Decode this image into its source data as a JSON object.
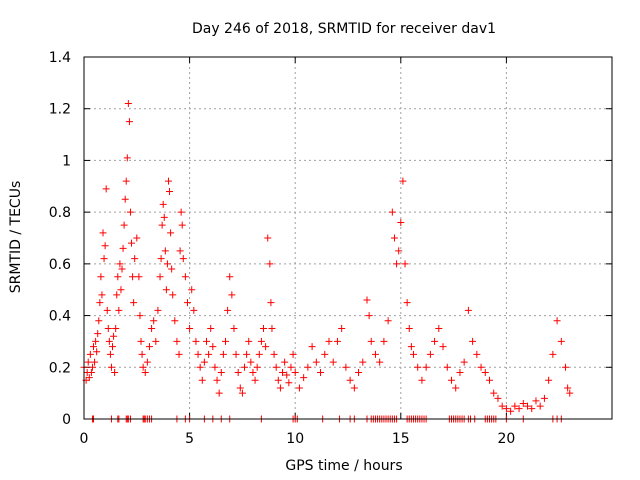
{
  "chart_data": {
    "type": "scatter",
    "title": "Day 246 of 2018, SRMTID for receiver dav1",
    "xlabel": "GPS time / hours",
    "ylabel": "SRMTID / TECUs",
    "xlim": [
      0,
      25
    ],
    "ylim": [
      0,
      1.4
    ],
    "grid": true,
    "x_ticks": [
      0,
      5,
      10,
      15,
      20
    ],
    "y_ticks": [
      0,
      0.2,
      0.4,
      0.6,
      0.8,
      1,
      1.2,
      1.4
    ],
    "x_tick_labels": [
      "0",
      "5",
      "10",
      "15",
      "20"
    ],
    "y_tick_labels": [
      "0",
      "0.2",
      "0.4",
      "0.6",
      "0.8",
      "1",
      "1.2",
      "1.4"
    ],
    "marker": "+",
    "marker_color": "#ff0000",
    "grid_color": "#a0a0a0",
    "series": [
      {
        "name": "dav1",
        "points": [
          [
            0.0,
            0.2
          ],
          [
            0.1,
            0.15
          ],
          [
            0.15,
            0.18
          ],
          [
            0.2,
            0.22
          ],
          [
            0.25,
            0.16
          ],
          [
            0.3,
            0.25
          ],
          [
            0.35,
            0.18
          ],
          [
            0.4,
            0.2
          ],
          [
            0.45,
            0.28
          ],
          [
            0.5,
            0.22
          ],
          [
            0.55,
            0.3
          ],
          [
            0.6,
            0.26
          ],
          [
            0.65,
            0.33
          ],
          [
            0.7,
            0.38
          ],
          [
            0.75,
            0.45
          ],
          [
            0.8,
            0.55
          ],
          [
            0.85,
            0.48
          ],
          [
            0.9,
            0.72
          ],
          [
            0.95,
            0.62
          ],
          [
            1.0,
            0.67
          ],
          [
            1.05,
            0.89
          ],
          [
            1.1,
            0.42
          ],
          [
            1.15,
            0.35
          ],
          [
            1.2,
            0.3
          ],
          [
            1.25,
            0.25
          ],
          [
            1.3,
            0.2
          ],
          [
            1.35,
            0.28
          ],
          [
            1.4,
            0.32
          ],
          [
            1.45,
            0.18
          ],
          [
            1.5,
            0.35
          ],
          [
            1.55,
            0.48
          ],
          [
            1.6,
            0.55
          ],
          [
            1.65,
            0.42
          ],
          [
            1.7,
            0.6
          ],
          [
            1.75,
            0.5
          ],
          [
            1.8,
            0.58
          ],
          [
            1.85,
            0.66
          ],
          [
            1.9,
            0.75
          ],
          [
            1.95,
            0.85
          ],
          [
            2.0,
            0.92
          ],
          [
            2.05,
            1.01
          ],
          [
            2.1,
            1.22
          ],
          [
            2.15,
            1.15
          ],
          [
            2.2,
            0.8
          ],
          [
            2.25,
            0.68
          ],
          [
            2.3,
            0.55
          ],
          [
            2.35,
            0.45
          ],
          [
            2.4,
            0.62
          ],
          [
            2.5,
            0.7
          ],
          [
            2.6,
            0.55
          ],
          [
            2.65,
            0.4
          ],
          [
            2.7,
            0.3
          ],
          [
            2.75,
            0.25
          ],
          [
            2.8,
            0.2
          ],
          [
            2.9,
            0.18
          ],
          [
            3.0,
            0.22
          ],
          [
            3.1,
            0.28
          ],
          [
            3.2,
            0.35
          ],
          [
            3.3,
            0.38
          ],
          [
            3.4,
            0.3
          ],
          [
            3.5,
            0.42
          ],
          [
            3.6,
            0.55
          ],
          [
            3.65,
            0.62
          ],
          [
            3.7,
            0.75
          ],
          [
            3.75,
            0.83
          ],
          [
            3.8,
            0.78
          ],
          [
            3.85,
            0.65
          ],
          [
            3.9,
            0.5
          ],
          [
            3.95,
            0.6
          ],
          [
            4.0,
            0.92
          ],
          [
            4.05,
            0.88
          ],
          [
            4.1,
            0.72
          ],
          [
            4.15,
            0.58
          ],
          [
            4.2,
            0.48
          ],
          [
            4.3,
            0.38
          ],
          [
            4.4,
            0.3
          ],
          [
            4.5,
            0.25
          ],
          [
            4.55,
            0.65
          ],
          [
            4.6,
            0.8
          ],
          [
            4.65,
            0.75
          ],
          [
            4.7,
            0.62
          ],
          [
            4.8,
            0.55
          ],
          [
            4.9,
            0.45
          ],
          [
            5.0,
            0.35
          ],
          [
            5.1,
            0.5
          ],
          [
            5.2,
            0.42
          ],
          [
            5.3,
            0.3
          ],
          [
            5.4,
            0.25
          ],
          [
            5.5,
            0.2
          ],
          [
            5.6,
            0.15
          ],
          [
            5.7,
            0.22
          ],
          [
            5.8,
            0.3
          ],
          [
            5.9,
            0.25
          ],
          [
            6.0,
            0.35
          ],
          [
            6.1,
            0.28
          ],
          [
            6.2,
            0.2
          ],
          [
            6.3,
            0.15
          ],
          [
            6.4,
            0.1
          ],
          [
            6.5,
            0.18
          ],
          [
            6.6,
            0.25
          ],
          [
            6.7,
            0.3
          ],
          [
            6.8,
            0.42
          ],
          [
            6.9,
            0.55
          ],
          [
            7.0,
            0.48
          ],
          [
            7.1,
            0.35
          ],
          [
            7.2,
            0.25
          ],
          [
            7.3,
            0.18
          ],
          [
            7.4,
            0.12
          ],
          [
            7.5,
            0.1
          ],
          [
            7.6,
            0.2
          ],
          [
            7.7,
            0.25
          ],
          [
            7.8,
            0.3
          ],
          [
            7.9,
            0.22
          ],
          [
            8.0,
            0.18
          ],
          [
            8.1,
            0.15
          ],
          [
            8.2,
            0.2
          ],
          [
            8.3,
            0.25
          ],
          [
            8.4,
            0.3
          ],
          [
            8.5,
            0.35
          ],
          [
            8.6,
            0.28
          ],
          [
            8.7,
            0.7
          ],
          [
            8.8,
            0.6
          ],
          [
            8.85,
            0.45
          ],
          [
            8.9,
            0.35
          ],
          [
            9.0,
            0.25
          ],
          [
            9.1,
            0.2
          ],
          [
            9.2,
            0.15
          ],
          [
            9.3,
            0.12
          ],
          [
            9.4,
            0.18
          ],
          [
            9.5,
            0.22
          ],
          [
            9.6,
            0.17
          ],
          [
            9.7,
            0.14
          ],
          [
            9.8,
            0.2
          ],
          [
            9.9,
            0.25
          ],
          [
            10.0,
            0.18
          ],
          [
            10.2,
            0.12
          ],
          [
            10.4,
            0.16
          ],
          [
            10.6,
            0.2
          ],
          [
            10.8,
            0.28
          ],
          [
            11.0,
            0.22
          ],
          [
            11.2,
            0.18
          ],
          [
            11.4,
            0.25
          ],
          [
            11.6,
            0.3
          ],
          [
            11.8,
            0.22
          ],
          [
            12.0,
            0.3
          ],
          [
            12.2,
            0.35
          ],
          [
            12.4,
            0.2
          ],
          [
            12.6,
            0.15
          ],
          [
            12.8,
            0.12
          ],
          [
            13.0,
            0.18
          ],
          [
            13.2,
            0.22
          ],
          [
            13.4,
            0.46
          ],
          [
            13.5,
            0.4
          ],
          [
            13.6,
            0.3
          ],
          [
            13.8,
            0.25
          ],
          [
            14.0,
            0.22
          ],
          [
            14.2,
            0.3
          ],
          [
            14.4,
            0.38
          ],
          [
            14.6,
            0.8
          ],
          [
            14.7,
            0.7
          ],
          [
            14.8,
            0.6
          ],
          [
            14.9,
            0.65
          ],
          [
            15.0,
            0.76
          ],
          [
            15.1,
            0.92
          ],
          [
            15.2,
            0.6
          ],
          [
            15.3,
            0.45
          ],
          [
            15.4,
            0.35
          ],
          [
            15.5,
            0.28
          ],
          [
            15.6,
            0.25
          ],
          [
            15.8,
            0.2
          ],
          [
            16.0,
            0.15
          ],
          [
            16.2,
            0.2
          ],
          [
            16.4,
            0.25
          ],
          [
            16.6,
            0.3
          ],
          [
            16.8,
            0.35
          ],
          [
            17.0,
            0.28
          ],
          [
            17.2,
            0.2
          ],
          [
            17.4,
            0.15
          ],
          [
            17.6,
            0.12
          ],
          [
            17.8,
            0.18
          ],
          [
            18.0,
            0.22
          ],
          [
            18.2,
            0.42
          ],
          [
            18.4,
            0.3
          ],
          [
            18.6,
            0.25
          ],
          [
            18.8,
            0.2
          ],
          [
            19.0,
            0.18
          ],
          [
            19.2,
            0.15
          ],
          [
            19.4,
            0.1
          ],
          [
            19.6,
            0.08
          ],
          [
            19.8,
            0.05
          ],
          [
            20.0,
            0.04
          ],
          [
            20.2,
            0.03
          ],
          [
            20.4,
            0.05
          ],
          [
            20.6,
            0.04
          ],
          [
            20.8,
            0.06
          ],
          [
            21.0,
            0.05
          ],
          [
            21.2,
            0.04
          ],
          [
            21.4,
            0.07
          ],
          [
            21.6,
            0.05
          ],
          [
            21.8,
            0.08
          ],
          [
            22.0,
            0.15
          ],
          [
            22.2,
            0.25
          ],
          [
            22.4,
            0.38
          ],
          [
            22.6,
            0.3
          ],
          [
            22.8,
            0.2
          ],
          [
            22.9,
            0.12
          ],
          [
            23.0,
            0.1
          ]
        ]
      }
    ],
    "zero_points_x": [
      0.4,
      0.45,
      1.3,
      1.6,
      1.65,
      2.0,
      2.05,
      2.1,
      2.2,
      2.8,
      2.85,
      2.9,
      3.0,
      3.1,
      3.2,
      4.4,
      4.8,
      5.0,
      5.7,
      6.1,
      6.5,
      6.9,
      8.4,
      9.9,
      10.0,
      10.1,
      11.3,
      12.1,
      12.6,
      12.8,
      13.4,
      13.6,
      13.7,
      13.8,
      13.9,
      14.0,
      14.1,
      14.2,
      14.3,
      14.4,
      14.5,
      14.6,
      14.7,
      14.8,
      15.3,
      15.4,
      15.5,
      15.6,
      15.7,
      15.8,
      15.9,
      16.0,
      16.1,
      16.2,
      17.3,
      17.4,
      17.5,
      17.6,
      17.7,
      17.8,
      17.9,
      18.0,
      18.2,
      18.3,
      18.5,
      19.0,
      19.1,
      19.2,
      19.3,
      19.4,
      19.5,
      20.0,
      20.8,
      22.2,
      22.4,
      22.6
    ]
  }
}
